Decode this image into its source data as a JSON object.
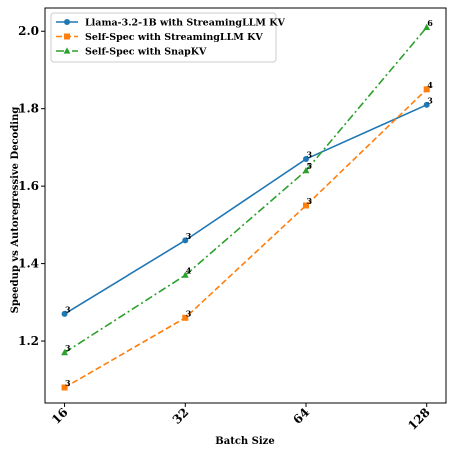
{
  "chart_data": {
    "type": "line",
    "title": "",
    "xlabel": "Batch Size",
    "ylabel": "Speedup vs Autoregressive Decoding",
    "x": [
      16,
      32,
      64,
      128
    ],
    "x_tick_labels": [
      "16",
      "32",
      "64",
      "128"
    ],
    "y_ticks": [
      1.2,
      1.4,
      1.6,
      1.8,
      2.0
    ],
    "y_tick_labels": [
      "1.2",
      "1.4",
      "1.6",
      "1.8",
      "2.0"
    ],
    "x_scale": "log2",
    "xlim": [
      14.3,
      143
    ],
    "ylim": [
      1.04,
      2.06
    ],
    "grid": false,
    "legend_placement": "top-left",
    "series": [
      {
        "name": "Llama-3.2-1B with StreamingLLM KV",
        "color": "#1f77b4",
        "line_style": "solid",
        "marker": "circle",
        "values": [
          1.27,
          1.46,
          1.67,
          1.81
        ],
        "point_labels": [
          "3",
          "3",
          "3",
          "3"
        ]
      },
      {
        "name": "Self-Spec with StreamingLLM KV",
        "color": "#ff7f0e",
        "line_style": "dashed",
        "marker": "square",
        "values": [
          1.08,
          1.26,
          1.55,
          1.85
        ],
        "point_labels": [
          "3",
          "3",
          "3",
          "4"
        ]
      },
      {
        "name": "Self-Spec with SnapKV",
        "color": "#2ca02c",
        "line_style": "dashdot",
        "marker": "triangle",
        "values": [
          1.17,
          1.37,
          1.64,
          2.01
        ],
        "point_labels": [
          "3",
          "4",
          "5",
          "6"
        ]
      }
    ]
  }
}
